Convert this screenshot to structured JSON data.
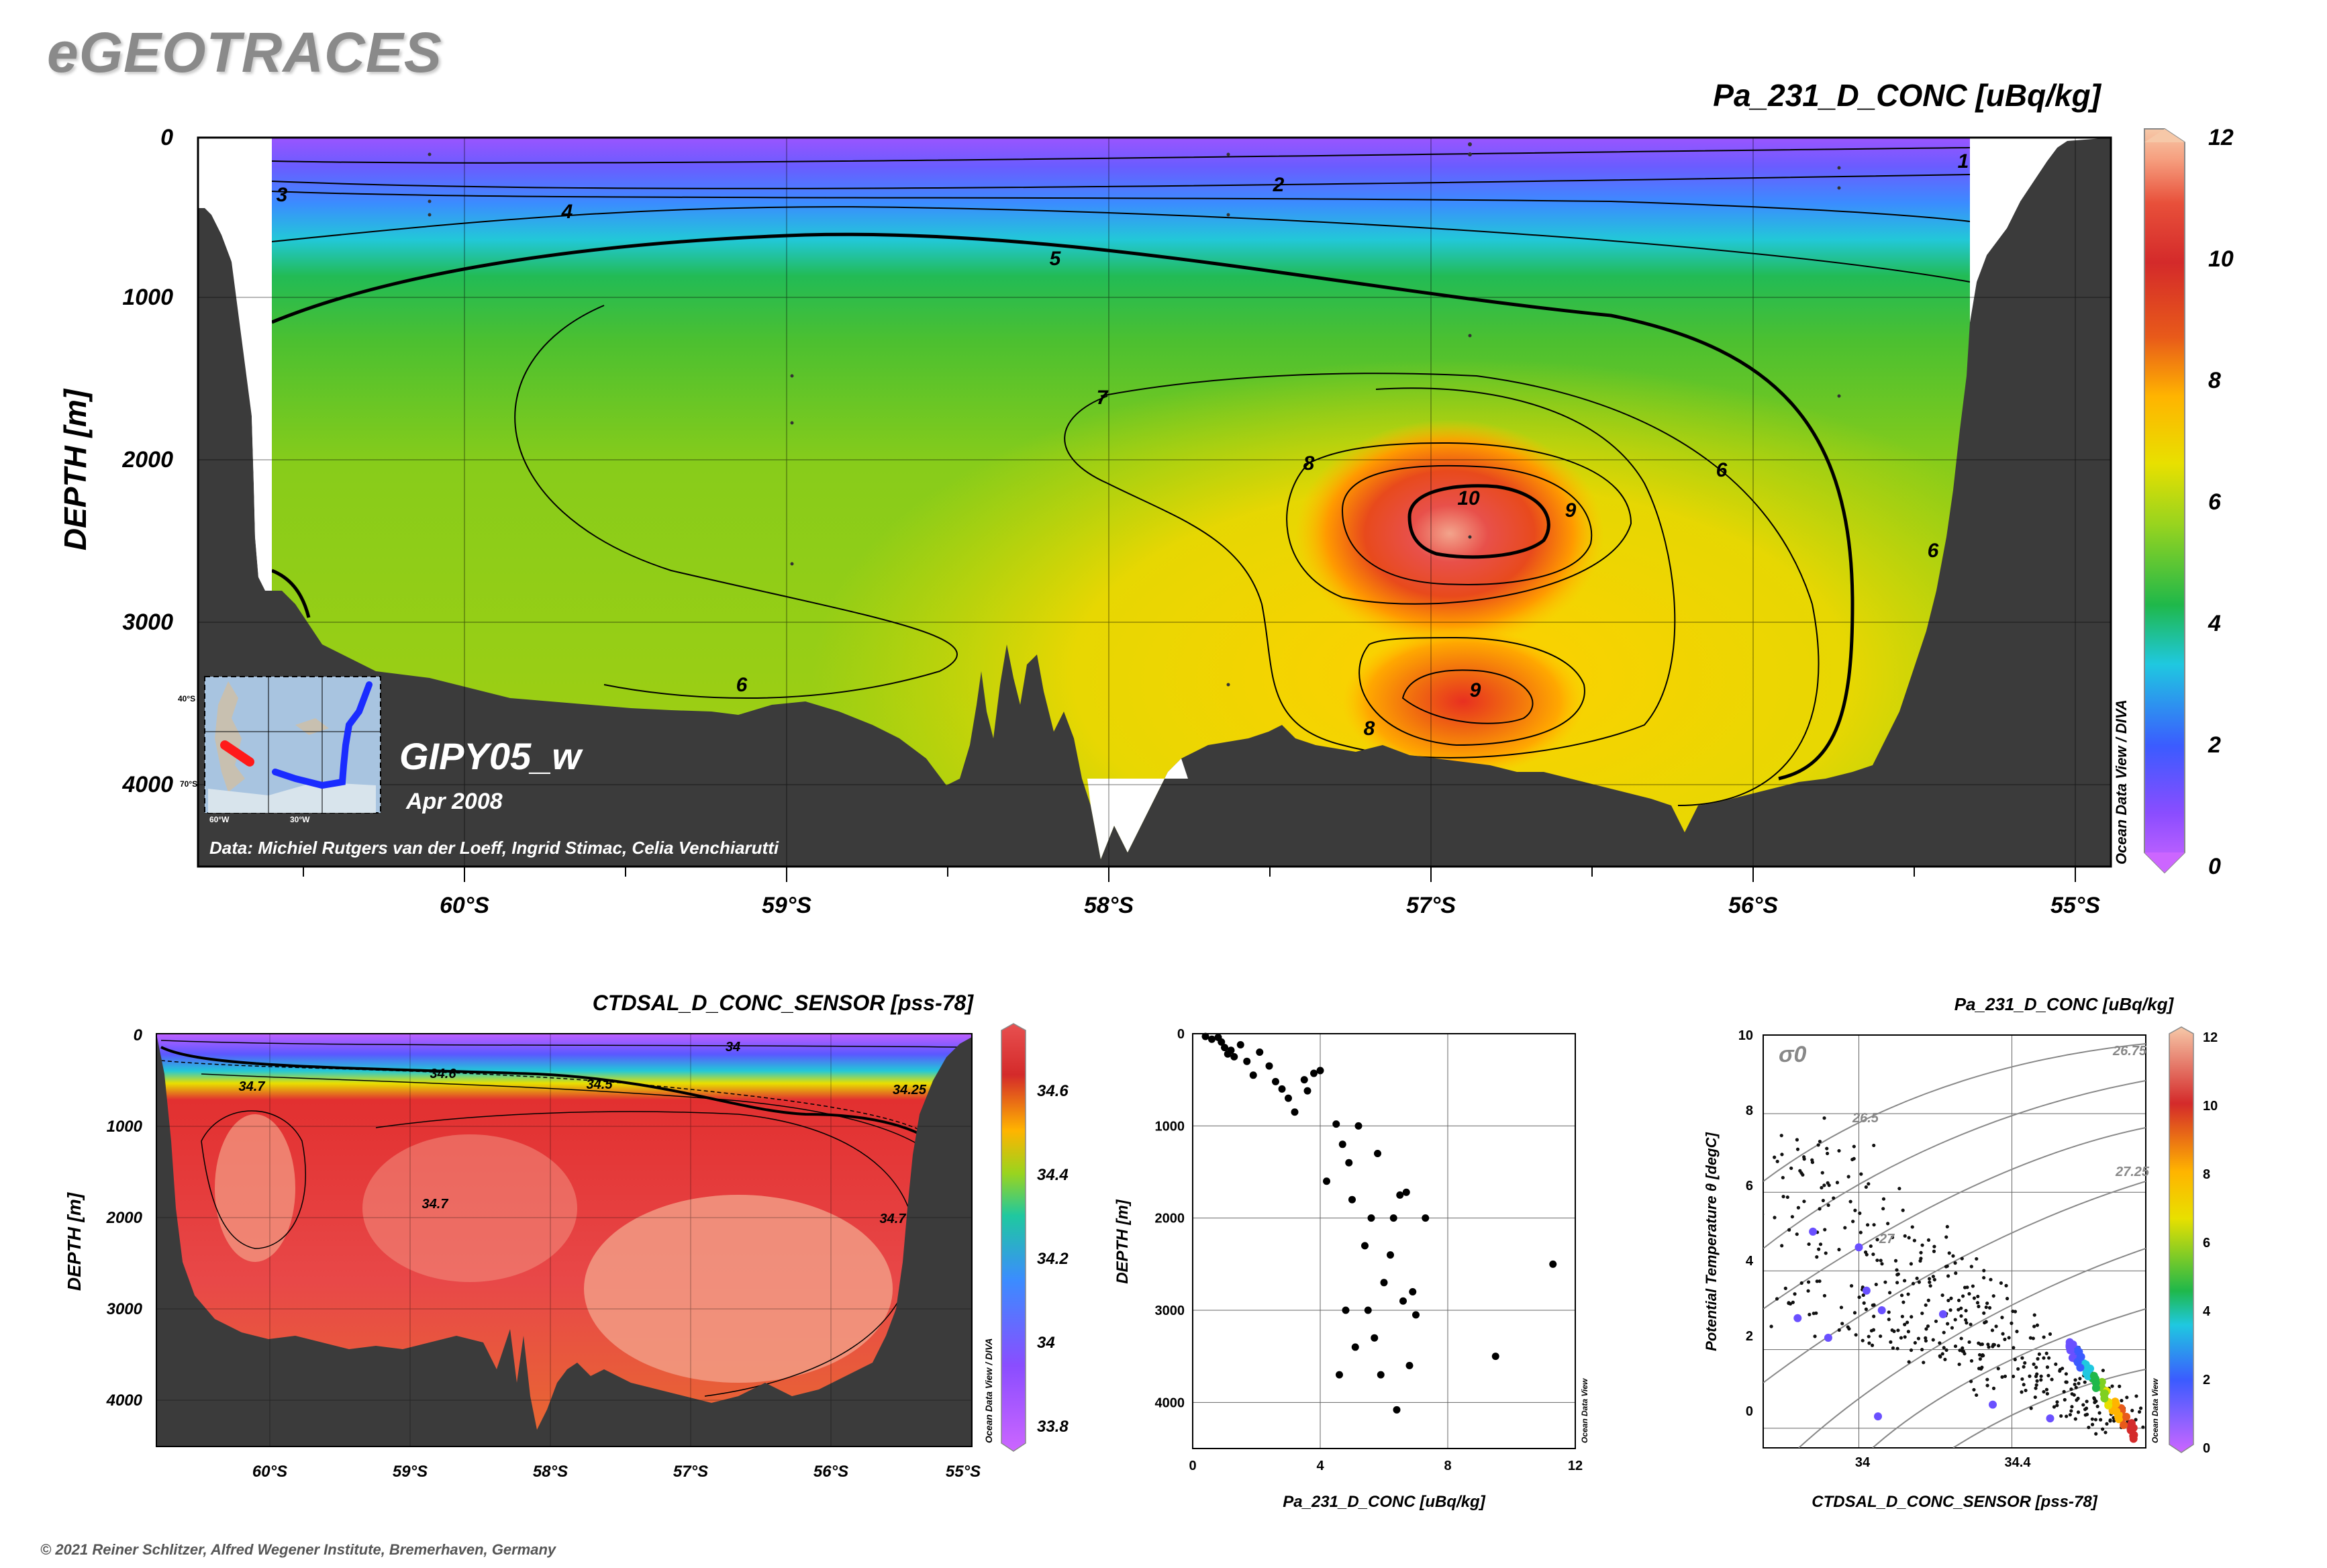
{
  "brand": "eGEOTRACES",
  "copyright": "© 2021 Reiner Schlitzer, Alfred Wegener Institute, Bremerhaven, Germany",
  "colors": {
    "terrain": "#3b3b3b",
    "scale": [
      "#cc66ff",
      "#8a4dff",
      "#3b5bff",
      "#1fc8e0",
      "#1fb84a",
      "#7fd020",
      "#e8e000",
      "#ffb400",
      "#e85a1a",
      "#d42a2a",
      "#e8503a",
      "#f6a080",
      "#f6c8a8"
    ]
  },
  "main_section": {
    "title": "Pa_231_D_CONC [uBq/kg]",
    "ylabel": "DEPTH [m]",
    "y_ticks": [
      "0",
      "1000",
      "2000",
      "3000",
      "4000"
    ],
    "x_ticks": [
      "60°S",
      "59°S",
      "58°S",
      "57°S",
      "56°S",
      "55°S"
    ],
    "colorbar_ticks": [
      "0",
      "2",
      "4",
      "6",
      "8",
      "10",
      "12"
    ],
    "contour_labels": [
      "1",
      "2",
      "3",
      "4",
      "5",
      "6",
      "6",
      "6",
      "7",
      "8",
      "8",
      "9",
      "9",
      "10"
    ],
    "cruise": "GIPY05_w",
    "date": "Apr 2008",
    "credits": "Data: Michiel Rutgers van der Loeff, Ingrid Stimac, Celia Venchiarutti",
    "watermark": "Ocean Data View / DIVA",
    "inset_labels": [
      "40°S",
      "70°S",
      "60°W",
      "30°W"
    ]
  },
  "salinity_section": {
    "title": "CTDSAL_D_CONC_SENSOR [pss-78]",
    "ylabel": "DEPTH [m]",
    "y_ticks": [
      "0",
      "1000",
      "2000",
      "3000",
      "4000"
    ],
    "x_ticks": [
      "60°S",
      "59°S",
      "58°S",
      "57°S",
      "56°S",
      "55°S"
    ],
    "colorbar_ticks": [
      "33.8",
      "34",
      "34.2",
      "34.4",
      "34.6"
    ],
    "contour_labels": [
      "34",
      "34.25",
      "34.5",
      "34.6",
      "34.7",
      "34.7",
      "34.7"
    ],
    "watermark": "Ocean Data View / DIVA"
  },
  "chart_data": [
    {
      "type": "scatter",
      "xlabel": "Pa_231_D_CONC [uBq/kg]",
      "ylabel": "DEPTH [m]",
      "xlim": [
        0,
        12
      ],
      "ylim": [
        4500,
        0
      ],
      "x_ticks": [
        "0",
        "4",
        "8",
        "12"
      ],
      "y_ticks": [
        "0",
        "1000",
        "2000",
        "3000",
        "4000"
      ],
      "watermark": "Ocean Data View",
      "x": [
        0.4,
        0.6,
        0.8,
        0.9,
        1.0,
        1.1,
        1.2,
        1.3,
        1.5,
        1.7,
        1.9,
        2.1,
        2.4,
        2.6,
        2.8,
        3.0,
        3.2,
        3.5,
        3.6,
        3.8,
        4.0,
        4.2,
        4.5,
        4.7,
        4.9,
        5.0,
        5.2,
        5.4,
        5.6,
        5.8,
        6.0,
        6.2,
        6.5,
        6.7,
        6.9,
        4.8,
        5.1,
        5.5,
        6.3,
        6.8,
        7.0,
        7.3,
        9.5,
        11.3,
        5.9,
        6.6,
        4.6,
        5.7,
        6.4
      ],
      "y": [
        30,
        60,
        40,
        90,
        150,
        220,
        180,
        250,
        120,
        300,
        450,
        200,
        350,
        520,
        600,
        700,
        850,
        500,
        620,
        430,
        400,
        1600,
        980,
        1200,
        1400,
        1800,
        1000,
        2300,
        2000,
        1300,
        2700,
        2400,
        1750,
        1720,
        2800,
        3000,
        3400,
        3000,
        2000,
        3600,
        3050,
        2000,
        3500,
        2500,
        3700,
        2900,
        3700,
        3300,
        4080
      ]
    },
    {
      "type": "scatter",
      "title": "Pa_231_D_CONC [uBq/kg]",
      "xlabel": "CTDSAL_D_CONC_SENSOR [pss-78]",
      "ylabel": "Potential Temperature θ [degC]",
      "xlim": [
        33.75,
        34.75
      ],
      "ylim": [
        -0.5,
        10
      ],
      "x_ticks": [
        "34",
        "34.4"
      ],
      "y_ticks": [
        "0",
        "2",
        "4",
        "6",
        "8",
        "10"
      ],
      "colorbar_ticks": [
        "0",
        "2",
        "4",
        "6",
        "8",
        "10",
        "12"
      ],
      "isopycnal_labels": [
        "σ0",
        "26.75",
        "26.5",
        "27.25",
        "27"
      ],
      "watermark": "Ocean Data View"
    }
  ]
}
